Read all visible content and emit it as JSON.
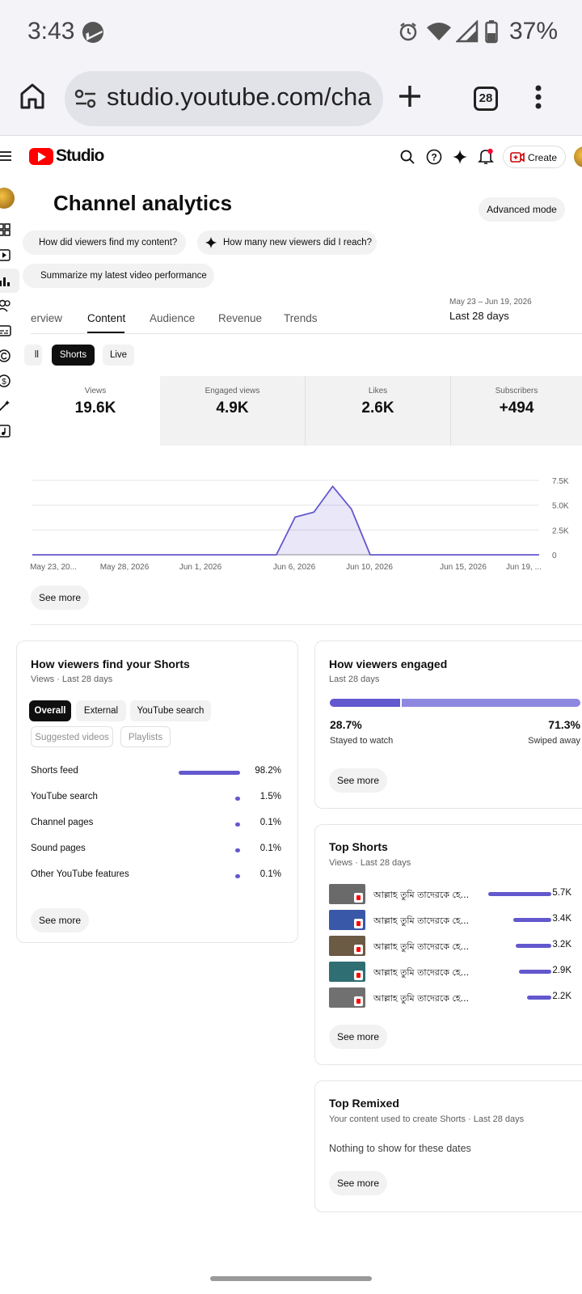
{
  "status_bar": {
    "time": "3:43",
    "battery": "37%"
  },
  "browser": {
    "url": "studio.youtube.com/cha",
    "tab_count": "28"
  },
  "header": {
    "logo_text": "Studio",
    "create_label": "Create"
  },
  "page": {
    "title": "Channel analytics",
    "advanced_mode": "Advanced mode",
    "prompts": [
      "How did viewers find my content?",
      "How many new viewers did I reach?",
      "Summarize my latest video performance"
    ],
    "tabs": [
      "erview",
      "Content",
      "Audience",
      "Revenue",
      "Trends"
    ],
    "active_tab": "Content",
    "date_range": "May 23 – Jun 19, 2026",
    "date_label": "Last 28 days",
    "filters": [
      "ll",
      "Shorts",
      "Live"
    ],
    "active_filter": "Shorts"
  },
  "metrics": [
    {
      "label": "Views",
      "value": "19.6K"
    },
    {
      "label": "Engaged views",
      "value": "4.9K"
    },
    {
      "label": "Likes",
      "value": "2.6K"
    },
    {
      "label": "Subscribers",
      "value": "+494"
    }
  ],
  "chart_data": {
    "type": "area",
    "x_tick_labels": [
      "May 23, 20...",
      "May 28, 2026",
      "Jun 1, 2026",
      "Jun 6, 2026",
      "Jun 10, 2026",
      "Jun 15, 2026",
      "Jun 19, ..."
    ],
    "y_tick_labels": [
      "7.5K",
      "5.0K",
      "2.5K",
      "0"
    ],
    "ylim": [
      0,
      7500
    ],
    "grid": true,
    "series": [
      {
        "values": [
          0,
          0,
          0,
          0,
          0,
          0,
          0,
          0,
          0,
          0,
          0,
          0,
          0,
          0,
          3800,
          4300,
          6900,
          4600,
          0,
          0,
          0,
          0,
          0,
          0,
          0,
          0,
          0,
          0
        ]
      }
    ],
    "color": "#6358cd"
  },
  "see_more": "See more",
  "find_card": {
    "title": "How viewers find your Shorts",
    "subtitle": "Views · Last 28 days",
    "chips": [
      "Overall",
      "External",
      "YouTube search",
      "Suggested videos",
      "Playlists"
    ],
    "sources": [
      {
        "label": "Shorts feed",
        "pct": "98.2%",
        "value": 98.2
      },
      {
        "label": "YouTube search",
        "pct": "1.5%",
        "value": 1.5
      },
      {
        "label": "Channel pages",
        "pct": "0.1%",
        "value": 0.1
      },
      {
        "label": "Sound pages",
        "pct": "0.1%",
        "value": 0.1
      },
      {
        "label": "Other YouTube features",
        "pct": "0.1%",
        "value": 0.1
      }
    ]
  },
  "engaged_card": {
    "title": "How viewers engaged",
    "subtitle": "Last 28 days",
    "stayed_pct": "28.7%",
    "stayed_label": "Stayed to watch",
    "swiped_pct": "71.3%",
    "swiped_label": "Swiped away",
    "stayed_value": 28.7
  },
  "top_shorts": {
    "title": "Top Shorts",
    "subtitle": "Views · Last 28 days",
    "items": [
      {
        "title": "আল্লাহ তুমি তাদেরকে হে...",
        "views": "5.7K",
        "value": 5.7,
        "thumb": "#6a6a6a"
      },
      {
        "title": "আল্লাহ তুমি তাদেরকে হে...",
        "views": "3.4K",
        "value": 3.4,
        "thumb": "#3a58a8"
      },
      {
        "title": "আল্লাহ তুমি তাদেরকে হে...",
        "views": "3.2K",
        "value": 3.2,
        "thumb": "#6b5a44"
      },
      {
        "title": "আল্লাহ তুমি তাদেরকে হে...",
        "views": "2.9K",
        "value": 2.9,
        "thumb": "#2f6e72"
      },
      {
        "title": "আল্লাহ তুমি তাদেরকে হে...",
        "views": "2.2K",
        "value": 2.2,
        "thumb": "#707070"
      }
    ]
  },
  "top_remixed": {
    "title": "Top Remixed",
    "subtitle": "Your content used to create Shorts · Last 28 days",
    "empty": "Nothing to show for these dates"
  }
}
